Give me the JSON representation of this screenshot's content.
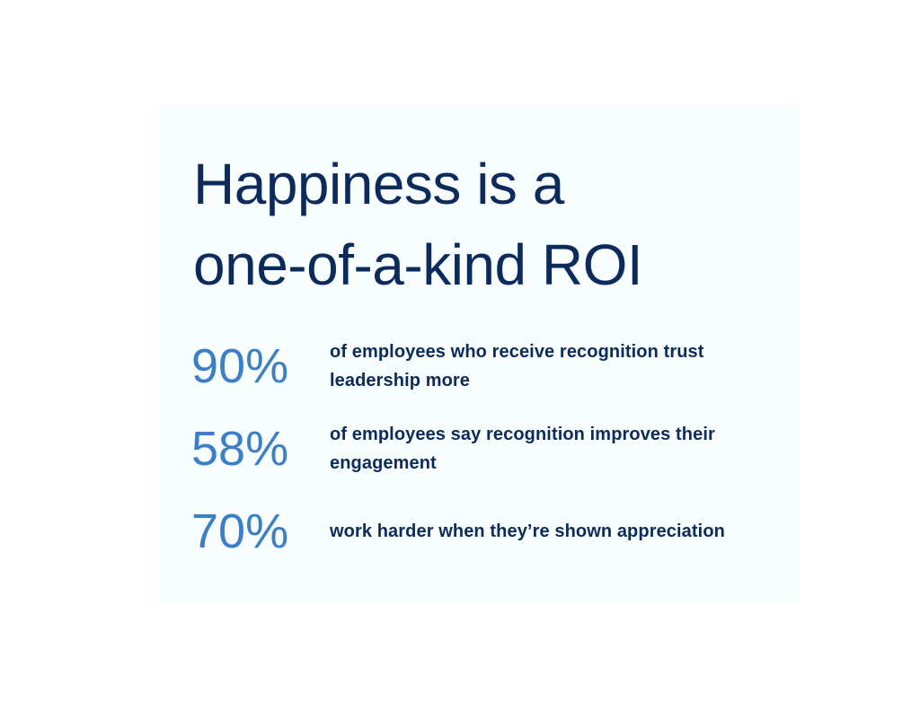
{
  "title": [
    "Happiness is a",
    "one-of-a-kind ROI"
  ],
  "stats": [
    {
      "value": "90%",
      "text": "of employees who receive recognition trust leadership more"
    },
    {
      "value": "58%",
      "text": "of employees say recognition improves their engagement"
    },
    {
      "value": "70%",
      "text": "work harder when they’re shown appreciation"
    }
  ]
}
